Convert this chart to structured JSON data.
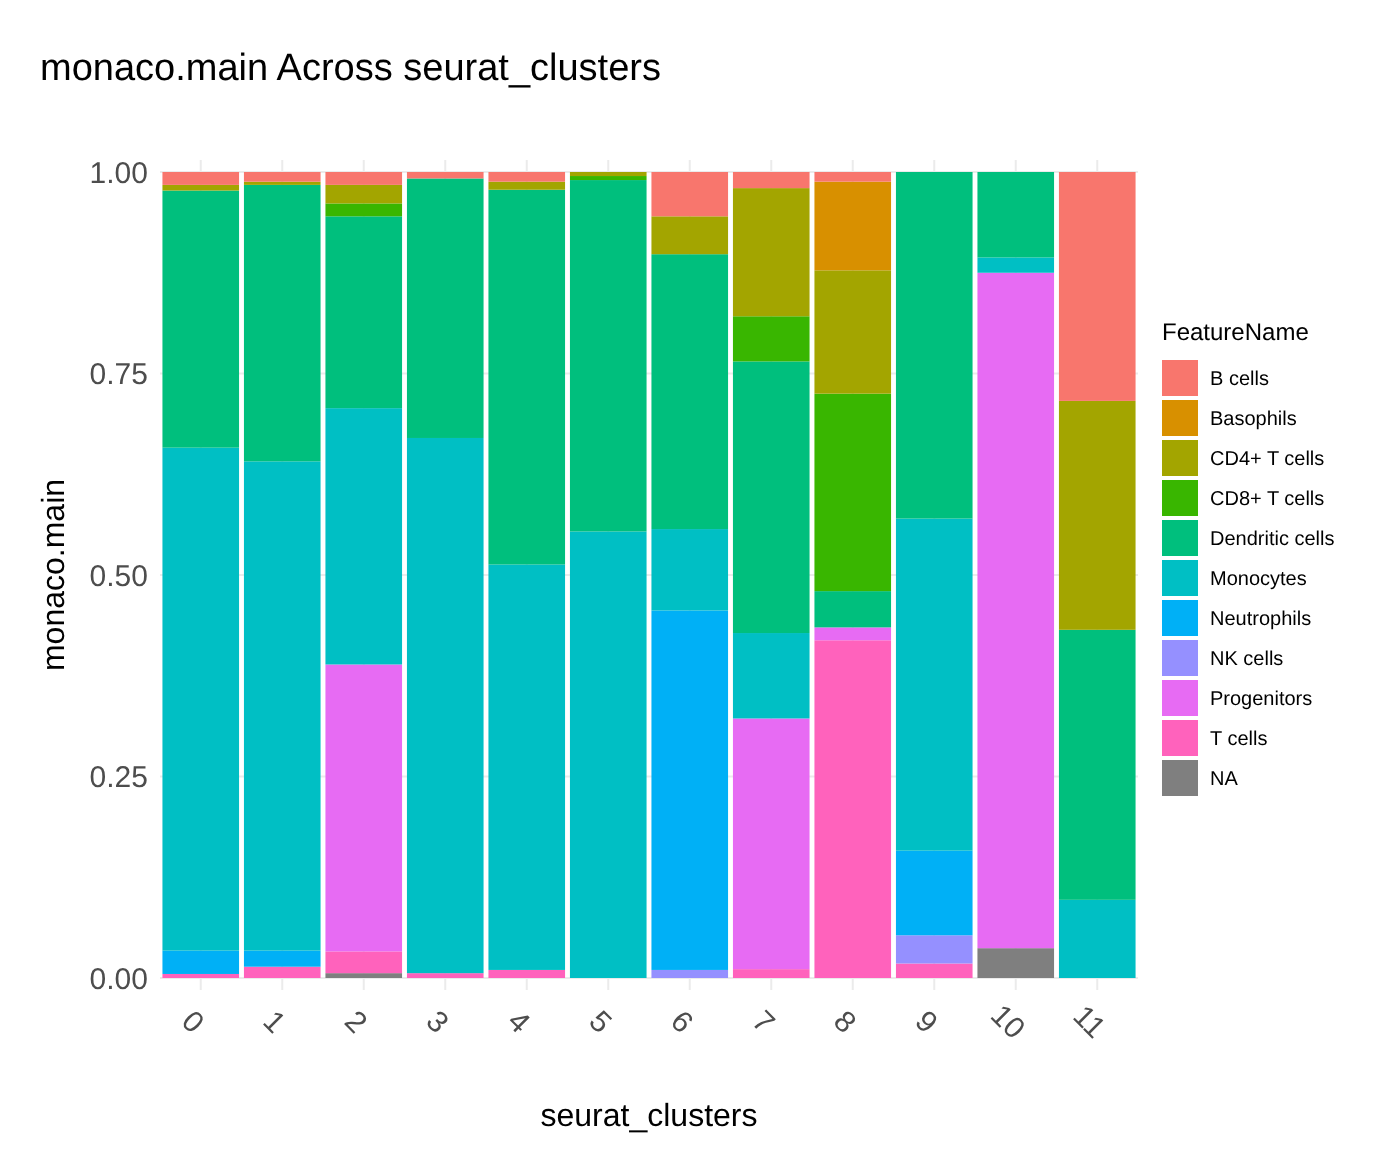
{
  "chart_data": {
    "type": "bar",
    "stacked": true,
    "title": "monaco.main Across  seurat_clusters",
    "xlabel": "seurat_clusters",
    "ylabel": "monaco.main",
    "legend_title": "FeatureName",
    "legend": "right",
    "grid": true,
    "categories": [
      "0",
      "1",
      "2",
      "3",
      "4",
      "5",
      "6",
      "7",
      "8",
      "9",
      "10",
      "11"
    ],
    "ylim": [
      0,
      1
    ],
    "yticks": [
      {
        "value": 0,
        "label": "0.00"
      },
      {
        "value": 0.25,
        "label": "0.25"
      },
      {
        "value": 0.5,
        "label": "0.50"
      },
      {
        "value": 0.75,
        "label": "0.75"
      },
      {
        "value": 1,
        "label": "1.00"
      }
    ],
    "series": [
      {
        "name": "NA",
        "color": "#7f7f7f",
        "values": [
          0,
          0,
          0.006,
          0,
          0,
          0,
          0,
          0,
          0,
          0,
          0.037,
          0
        ]
      },
      {
        "name": "T cells",
        "color": "#ff62bc",
        "values": [
          0.005,
          0.014,
          0.027,
          0.006,
          0.01,
          0,
          0,
          0.011,
          0.419,
          0.018,
          0,
          0
        ]
      },
      {
        "name": "Progenitors",
        "color": "#e76bf3",
        "values": [
          0,
          0,
          0.356,
          0,
          0,
          0,
          0,
          0.311,
          0.016,
          0,
          0.838,
          0
        ]
      },
      {
        "name": "NK cells",
        "color": "#9590ff",
        "values": [
          0,
          0,
          0,
          0,
          0,
          0,
          0.01,
          0,
          0,
          0.035,
          0,
          0
        ]
      },
      {
        "name": "Neutrophils",
        "color": "#00b0f6",
        "values": [
          0.029,
          0.02,
          0,
          0,
          0,
          0,
          0.446,
          0,
          0,
          0.105,
          0,
          0
        ]
      },
      {
        "name": "Monocytes",
        "color": "#00bfc4",
        "values": [
          0.624,
          0.607,
          0.318,
          0.664,
          0.503,
          0.554,
          0.101,
          0.106,
          0,
          0.412,
          0.019,
          0.097
        ]
      },
      {
        "name": "Dendritic cells",
        "color": "#00bf7d",
        "values": [
          0.319,
          0.343,
          0.238,
          0.322,
          0.465,
          0.436,
          0.341,
          0.337,
          0.045,
          0.43,
          0.106,
          0.335
        ]
      },
      {
        "name": "CD8+ T cells",
        "color": "#39b600",
        "values": [
          0,
          0,
          0.016,
          0,
          0,
          0.005,
          0,
          0.056,
          0.245,
          0,
          0,
          0
        ]
      },
      {
        "name": "CD4+ T cells",
        "color": "#a3a500",
        "values": [
          0.007,
          0.004,
          0.023,
          0,
          0.01,
          0.005,
          0.047,
          0.159,
          0.153,
          0,
          0,
          0.284
        ]
      },
      {
        "name": "Basophils",
        "color": "#d89000",
        "values": [
          0,
          0,
          0,
          0,
          0,
          0,
          0,
          0,
          0.11,
          0,
          0,
          0
        ]
      },
      {
        "name": "B cells",
        "color": "#f8766d",
        "values": [
          0.016,
          0.012,
          0.016,
          0.008,
          0.012,
          0,
          0.055,
          0.02,
          0.012,
          0,
          0,
          0.284
        ]
      }
    ]
  }
}
